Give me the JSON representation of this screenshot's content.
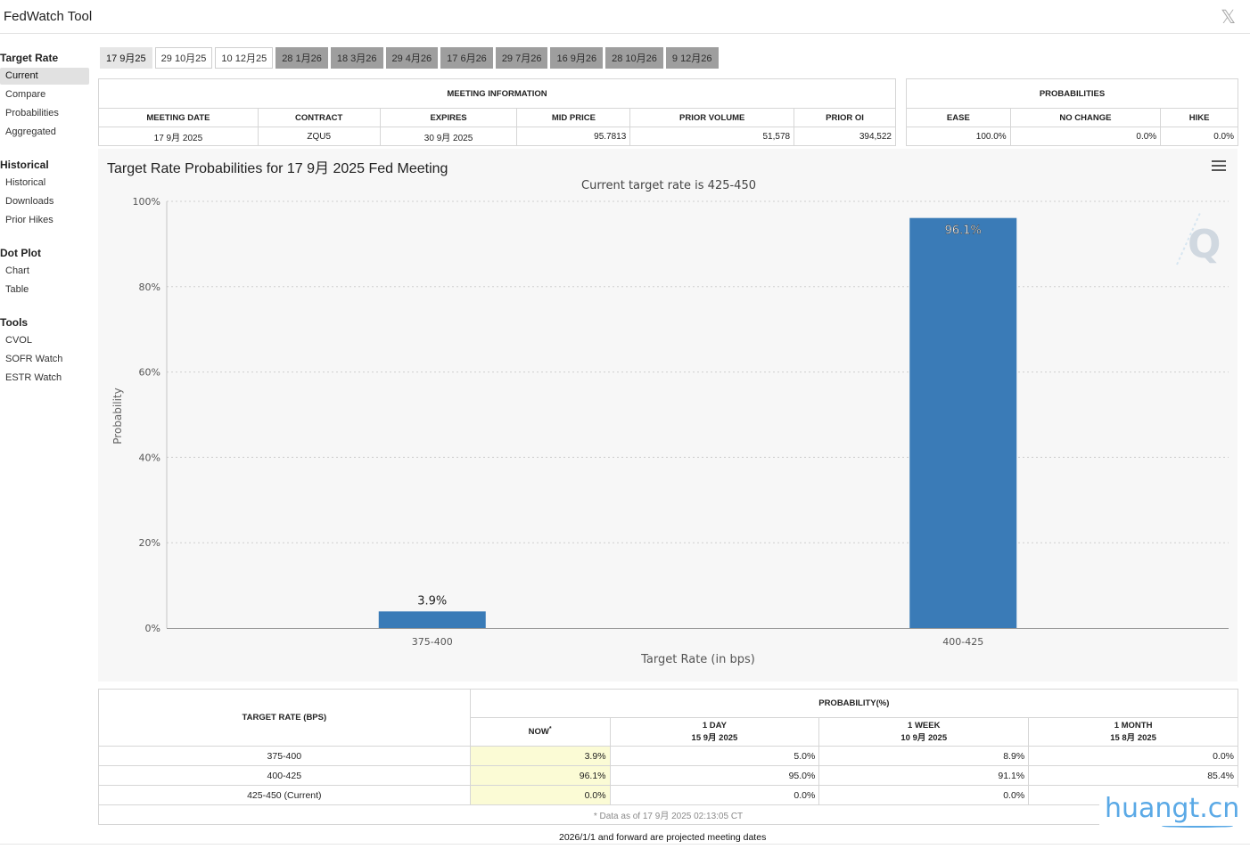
{
  "window": {
    "title": "FedWatch Tool",
    "close_glyph": "𝕏"
  },
  "sidebar": {
    "sections": [
      {
        "heading": "Target Rate",
        "items": [
          "Current",
          "Compare",
          "Probabilities",
          "Aggregated"
        ]
      },
      {
        "heading": "Historical",
        "items": [
          "Historical",
          "Downloads",
          "Prior Hikes"
        ]
      },
      {
        "heading": "Dot Plot",
        "items": [
          "Chart",
          "Table"
        ]
      },
      {
        "heading": "Tools",
        "items": [
          "CVOL",
          "SOFR Watch",
          "ESTR Watch"
        ]
      }
    ],
    "active_item": "Current"
  },
  "tabs": [
    {
      "label": "17 9月25",
      "state": "selected"
    },
    {
      "label": "29 10月25",
      "state": "normal"
    },
    {
      "label": "10 12月25",
      "state": "normal"
    },
    {
      "label": "28 1月26",
      "state": "future"
    },
    {
      "label": "18 3月26",
      "state": "future"
    },
    {
      "label": "29 4月26",
      "state": "future"
    },
    {
      "label": "17 6月26",
      "state": "future"
    },
    {
      "label": "29 7月26",
      "state": "future"
    },
    {
      "label": "16 9月26",
      "state": "future"
    },
    {
      "label": "28 10月26",
      "state": "future"
    },
    {
      "label": "9 12月26",
      "state": "future"
    }
  ],
  "meeting_info": {
    "header": "MEETING INFORMATION",
    "columns": [
      "MEETING DATE",
      "CONTRACT",
      "EXPIRES",
      "MID PRICE",
      "PRIOR VOLUME",
      "PRIOR OI"
    ],
    "row": [
      "17 9月 2025",
      "ZQU5",
      "30 9月 2025",
      "95.7813",
      "51,578",
      "394,522"
    ]
  },
  "probabilities": {
    "header": "PROBABILITIES",
    "columns": [
      "EASE",
      "NO CHANGE",
      "HIKE"
    ],
    "row": [
      "100.0%",
      "0.0%",
      "0.0%"
    ]
  },
  "chart": {
    "title": "Target Rate Probabilities for 17 9月 2025 Fed Meeting",
    "menu_icon": "hamburger-menu-icon",
    "watermark_icon": "q-logo-icon",
    "bar_color": "#3a7bb7"
  },
  "chart_data": {
    "type": "bar",
    "subtitle": "Current target rate is 425-450",
    "categories": [
      "375-400",
      "400-425"
    ],
    "values": [
      3.9,
      96.1
    ],
    "data_labels": [
      "3.9%",
      "96.1%"
    ],
    "xlabel": "Target Rate (in bps)",
    "ylabel": "Probability",
    "ylim": [
      0,
      100
    ],
    "yticks": [
      "0%",
      "20%",
      "40%",
      "60%",
      "80%",
      "100%"
    ],
    "grid": true,
    "legend": false
  },
  "prob_table": {
    "rate_header": "TARGET RATE (BPS)",
    "prob_header": "PROBABILITY(%)",
    "now_header": "NOW",
    "now_marker": "*",
    "columns": [
      {
        "label": "1 DAY",
        "date": "15 9月 2025"
      },
      {
        "label": "1 WEEK",
        "date": "10 9月 2025"
      },
      {
        "label": "1 MONTH",
        "date": "15 8月 2025"
      }
    ],
    "rows": [
      {
        "rate": "375-400",
        "now": "3.9%",
        "d1": "5.0%",
        "w1": "8.9%",
        "m1": "0.0%"
      },
      {
        "rate": "400-425",
        "now": "96.1%",
        "d1": "95.0%",
        "w1": "91.1%",
        "m1": "85.4%"
      },
      {
        "rate": "425-450 (Current)",
        "now": "0.0%",
        "d1": "0.0%",
        "w1": "0.0%",
        "m1": ""
      }
    ],
    "footnote": "* Data as of 17 9月 2025 02:13:05 CT"
  },
  "footer": {
    "projected_note": "2026/1/1 and forward are projected meeting dates"
  },
  "watermark": {
    "text": "huangt.cn",
    "color": "#5aa9e6"
  }
}
